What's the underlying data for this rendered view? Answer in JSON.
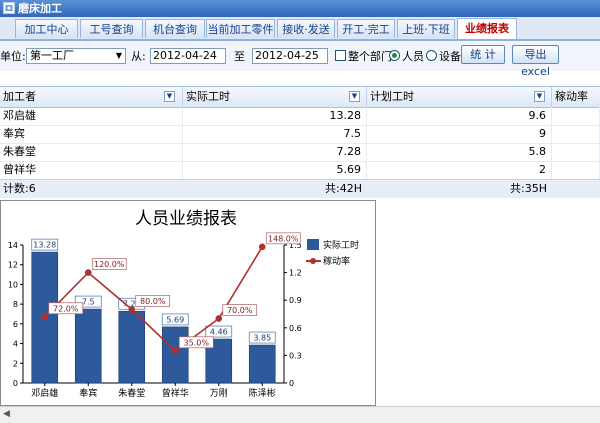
{
  "window": {
    "title": "磨床加工"
  },
  "tabs": [
    {
      "label": "加工中心",
      "active": false
    },
    {
      "label": "工号查询",
      "active": false
    },
    {
      "label": "机台查询",
      "active": false
    },
    {
      "label": "当前加工零件",
      "active": false
    },
    {
      "label": "接收·发送",
      "active": false
    },
    {
      "label": "开工·完工",
      "active": false
    },
    {
      "label": "上班·下班",
      "active": false
    },
    {
      "label": "业绩报表",
      "active": true
    }
  ],
  "filters": {
    "unit_label": "单位:",
    "unit_value": "第一工厂",
    "from_label": "从:",
    "from_date": "2012-04-24",
    "to_label": "至",
    "to_date": "2012-04-25",
    "whole_dept_label": "整个部门",
    "whole_dept_checked": false,
    "radio_person_label": "人员",
    "radio_device_label": "设备",
    "selected_radio": "人员",
    "stat_button": "统 计",
    "export_button": "导出excel"
  },
  "grid": {
    "columns": [
      "加工者",
      "实际工时",
      "计划工时",
      "稼动率"
    ],
    "rows": [
      [
        "邓启雄",
        "13.28",
        "9.6",
        ""
      ],
      [
        "奉宾",
        "7.5",
        "9",
        ""
      ],
      [
        "朱春堂",
        "7.28",
        "5.8",
        ""
      ],
      [
        "曾祥华",
        "5.69",
        "2",
        ""
      ]
    ],
    "summary": {
      "count": "计数:6",
      "actual_total": "共:42H",
      "plan_total": "共:35H"
    }
  },
  "chart_data": {
    "type": "bar",
    "title": "人员业绩报表",
    "categories": [
      "邓启雄",
      "奉宾",
      "朱春堂",
      "曾祥华",
      "万刚",
      "陈泽彬"
    ],
    "series": [
      {
        "name": "实际工时",
        "type": "bar",
        "axis": "left",
        "values": [
          13.28,
          7.5,
          7.28,
          5.69,
          4.46,
          3.85
        ],
        "labels": [
          "13.28",
          "7.5",
          "7.28",
          "5.69",
          "4.46",
          "3.85"
        ],
        "color": "#2e5a9c"
      },
      {
        "name": "稼动率",
        "type": "line",
        "axis": "right",
        "values": [
          0.72,
          1.2,
          0.8,
          0.35,
          0.7,
          1.48
        ],
        "labels": [
          "72.0%",
          "120.0%",
          "80.0%",
          "35.0%",
          "70.0%",
          "148.0%"
        ],
        "color": "#b03030"
      }
    ],
    "y_left": {
      "min": 0,
      "max": 14,
      "ticks": [
        "0",
        "2",
        "4",
        "6",
        "8",
        "10",
        "12",
        "14"
      ]
    },
    "y_right": {
      "min": 0,
      "max": 1.5,
      "ticks": [
        "0",
        "0.3",
        "0.6",
        "0.9",
        "1.2",
        "1.5"
      ]
    },
    "legend_position": "top-right",
    "grid": false
  }
}
